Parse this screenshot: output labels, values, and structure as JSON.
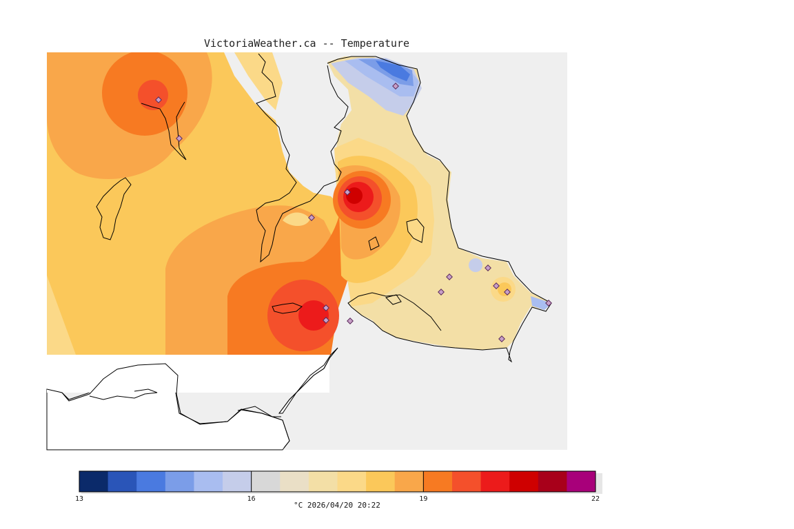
{
  "title": "VictoriaWeather.ca -- Temperature",
  "legend": {
    "tick_labels": [
      "13",
      "16",
      "19",
      "22"
    ],
    "tick_values": [
      13,
      16,
      19,
      22
    ],
    "min": 13,
    "max": 22,
    "step": 0.5,
    "colors": [
      "#0b2a6a",
      "#2a55b8",
      "#4a7ae0",
      "#7b9de8",
      "#a9bdf0",
      "#c5cdea",
      "#d8d8d8",
      "#eadfc6",
      "#f3dfa6",
      "#fbd988",
      "#fbc85a",
      "#f9a74a",
      "#f77a22",
      "#f4502b",
      "#ec1b1b",
      "#cf0000",
      "#a8001a",
      "#a8007a"
    ],
    "caption": "°C  2026/04/20 20:22"
  },
  "map_colors": {
    "land_base": "#fbc85a",
    "water": "#efefef",
    "unshaded_land": "#ffffff",
    "coast": "#000000",
    "station": "#c8a0c8"
  }
}
